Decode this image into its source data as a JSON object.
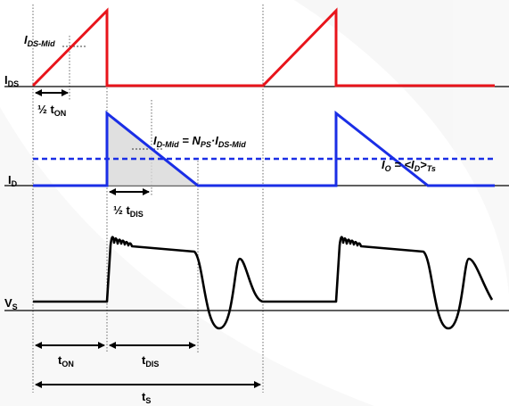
{
  "labels": {
    "i_ds": {
      "main": "I",
      "sub": "DS"
    },
    "i_d": {
      "main": "I",
      "sub": "D"
    },
    "v_s": {
      "main": "V",
      "sub": "S"
    },
    "i_ds_mid": {
      "main": "I",
      "sub": "DS-Mid"
    },
    "i_d_mid": {
      "p1": "I",
      "s1": "D-Mid",
      "p2": " = N",
      "s2": "PS",
      "p3": "·I",
      "s3": "DS-Mid"
    },
    "i_o": {
      "p1": "I",
      "s1": "O",
      "p2": " = <I",
      "s2": "D",
      "p3": ">",
      "s3": "Ts"
    },
    "half_ton": {
      "main": "½ t",
      "sub": "ON"
    },
    "half_tdis": {
      "main": "½ t",
      "sub": "DIS"
    },
    "t_on": {
      "main": "t",
      "sub": "ON"
    },
    "t_dis": {
      "main": "t",
      "sub": "DIS"
    },
    "t_s": {
      "main": "t",
      "sub": "S"
    }
  },
  "colors": {
    "switch_current": "#e8141b",
    "diode_current": "#1a2ee6",
    "output_current_dashed": "#1a2ee6",
    "voltage": "#000000",
    "shaded_area": "#d8d8d8"
  }
}
